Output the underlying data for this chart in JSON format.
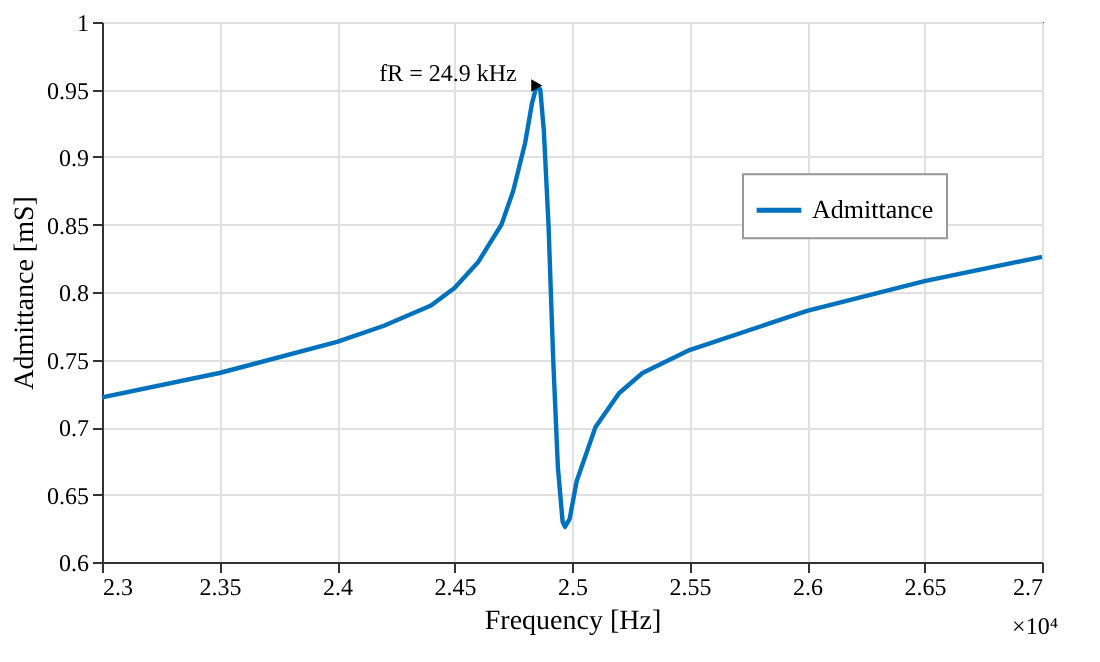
{
  "chart_data": {
    "type": "line",
    "xlabel": "Frequency [Hz]",
    "ylabel": "Admittance [mS]",
    "x": [
      2.3,
      2.35,
      2.4,
      2.42,
      2.44,
      2.45,
      2.46,
      2.47,
      2.475,
      2.48,
      2.483,
      2.485,
      2.4865,
      2.488,
      2.49,
      2.492,
      2.494,
      2.496,
      2.497,
      2.499,
      2.502,
      2.51,
      2.52,
      2.53,
      2.55,
      2.6,
      2.65,
      2.7
    ],
    "series": [
      {
        "name": "Admittance",
        "color": "#0072bd",
        "values": [
          0.722,
          0.74,
          0.763,
          0.775,
          0.79,
          0.803,
          0.822,
          0.85,
          0.875,
          0.91,
          0.94,
          0.953,
          0.95,
          0.92,
          0.85,
          0.75,
          0.67,
          0.63,
          0.626,
          0.632,
          0.66,
          0.7,
          0.725,
          0.74,
          0.757,
          0.786,
          0.808,
          0.826
        ]
      }
    ],
    "xlim": [
      2.3,
      2.7
    ],
    "xticks": [
      2.3,
      2.35,
      2.4,
      2.45,
      2.5,
      2.55,
      2.6,
      2.65,
      2.7
    ],
    "ylim": [
      0.6,
      1
    ],
    "yticks": [
      0.6,
      0.65,
      0.7,
      0.75,
      0.8,
      0.85,
      0.9,
      0.95,
      1
    ],
    "annotations": [
      {
        "text": "fR = 24.9 kHz",
        "x": 2.485,
        "y": 0.953
      },
      "×10⁴"
    ],
    "grid": true,
    "legend": "right",
    "line_style": "solid",
    "marker": "none"
  }
}
